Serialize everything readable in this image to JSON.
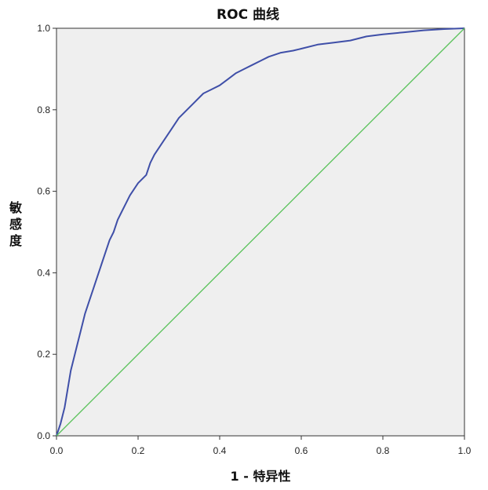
{
  "chart_data": {
    "type": "line",
    "title": "ROC 曲线",
    "xlabel": "1 - 特异性",
    "ylabel": "敏感度",
    "xlim": [
      0.0,
      1.0
    ],
    "ylim": [
      0.0,
      1.0
    ],
    "x_ticks": [
      "0.0",
      "0.2",
      "0.4",
      "0.6",
      "0.8",
      "1.0"
    ],
    "y_ticks": [
      "0.0",
      "0.2",
      "0.4",
      "0.6",
      "0.8",
      "1.0"
    ],
    "grid": false,
    "legend": "none",
    "background_color": "#efefef",
    "series": [
      {
        "color": "#3f4fa8",
        "x": [
          0.0,
          0.005,
          0.01,
          0.015,
          0.02,
          0.025,
          0.03,
          0.035,
          0.04,
          0.05,
          0.06,
          0.07,
          0.08,
          0.09,
          0.1,
          0.11,
          0.12,
          0.13,
          0.14,
          0.15,
          0.16,
          0.17,
          0.18,
          0.2,
          0.22,
          0.23,
          0.24,
          0.26,
          0.28,
          0.3,
          0.32,
          0.34,
          0.36,
          0.38,
          0.4,
          0.42,
          0.44,
          0.46,
          0.48,
          0.5,
          0.52,
          0.55,
          0.58,
          0.6,
          0.64,
          0.68,
          0.72,
          0.76,
          0.8,
          0.85,
          0.9,
          0.95,
          1.0
        ],
        "y": [
          0.0,
          0.015,
          0.03,
          0.05,
          0.07,
          0.1,
          0.13,
          0.16,
          0.18,
          0.22,
          0.26,
          0.3,
          0.33,
          0.36,
          0.39,
          0.42,
          0.45,
          0.48,
          0.5,
          0.53,
          0.55,
          0.57,
          0.59,
          0.62,
          0.64,
          0.67,
          0.69,
          0.72,
          0.75,
          0.78,
          0.8,
          0.82,
          0.84,
          0.85,
          0.86,
          0.875,
          0.89,
          0.9,
          0.91,
          0.92,
          0.93,
          0.94,
          0.945,
          0.95,
          0.96,
          0.965,
          0.97,
          0.98,
          0.985,
          0.99,
          0.995,
          0.998,
          1.0
        ]
      },
      {
        "color": "#59c25a",
        "x": [
          0.0,
          1.0
        ],
        "y": [
          0.0,
          1.0
        ]
      }
    ]
  }
}
